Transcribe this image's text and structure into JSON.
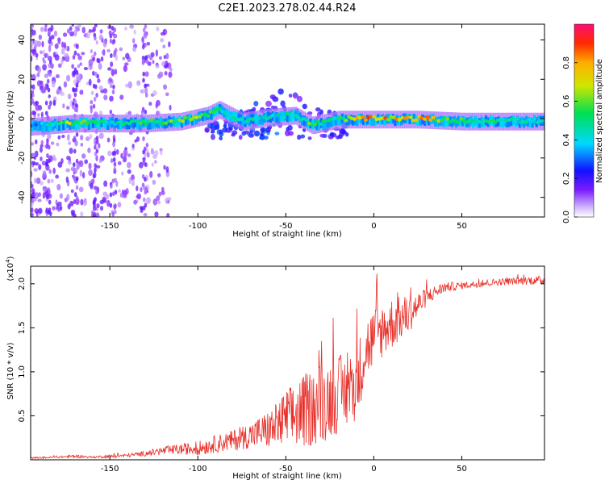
{
  "title": "C2E1.2023.278.02.44.R24",
  "chart_data": [
    {
      "type": "heatmap",
      "xlabel": "Height of straight line (km)",
      "ylabel": "Frequency (Hz)",
      "xlim": [
        -195,
        97
      ],
      "ylim": [
        -50,
        48
      ],
      "xticks": [
        -150,
        -100,
        -50,
        0,
        50
      ],
      "yticks": [
        -40,
        -20,
        0,
        20,
        40
      ],
      "colorbar": {
        "label": "Normalized spectral amplitude",
        "range": [
          0.0,
          1.0
        ],
        "ticks": [
          0.0,
          0.2,
          0.4,
          0.6,
          0.8
        ],
        "colormap": "rainbow-violet-to-magenta"
      },
      "ridge": [
        {
          "x": -185,
          "f": -3,
          "amp": 0.45
        },
        {
          "x": -170,
          "f": -2,
          "amp": 0.7
        },
        {
          "x": -150,
          "f": -2,
          "amp": 0.45
        },
        {
          "x": -130,
          "f": -2,
          "amp": 0.55
        },
        {
          "x": -110,
          "f": -1,
          "amp": 0.6
        },
        {
          "x": -95,
          "f": 2,
          "amp": 0.65
        },
        {
          "x": -88,
          "f": 5,
          "amp": 0.5
        },
        {
          "x": -75,
          "f": -1,
          "amp": 0.45
        },
        {
          "x": -60,
          "f": 1,
          "amp": 0.45
        },
        {
          "x": -45,
          "f": 2,
          "amp": 0.5
        },
        {
          "x": -35,
          "f": -3,
          "amp": 0.6
        },
        {
          "x": -20,
          "f": 0,
          "amp": 0.5
        },
        {
          "x": -5,
          "f": 0,
          "amp": 0.95
        },
        {
          "x": 10,
          "f": 0,
          "amp": 0.8
        },
        {
          "x": 25,
          "f": 0,
          "amp": 0.85
        },
        {
          "x": 50,
          "f": -1,
          "amp": 0.55
        },
        {
          "x": 75,
          "f": -1,
          "amp": 0.5
        },
        {
          "x": 95,
          "f": -1,
          "amp": 0.45
        }
      ]
    },
    {
      "type": "line",
      "xlabel": "Height of straight line (km)",
      "ylabel": "SNR (10 * v/v)",
      "y_multiplier": "(x10",
      "y_multiplier_exp": "4",
      "y_multiplier_close": ")",
      "xlim": [
        -195,
        97
      ],
      "ylim": [
        0,
        2.2
      ],
      "xticks": [
        -150,
        -100,
        -50,
        0,
        50
      ],
      "yticks": [
        0.5,
        1.0,
        1.5,
        2.0
      ],
      "line_color": "#e8302a",
      "series": [
        {
          "x": [
            -195,
            -180,
            -170,
            -160,
            -150,
            -140,
            -130,
            -120,
            -110,
            -100,
            -90,
            -80,
            -70,
            -60,
            -55,
            -50,
            -45,
            -40,
            -35,
            -30,
            -25,
            -20,
            -15,
            -10,
            -8,
            -5,
            0,
            5,
            10,
            15,
            20,
            25,
            30,
            40,
            50,
            60,
            70,
            80,
            90,
            97
          ],
          "y": [
            0.02,
            0.03,
            0.04,
            0.03,
            0.04,
            0.05,
            0.07,
            0.1,
            0.12,
            0.13,
            0.18,
            0.22,
            0.28,
            0.34,
            0.38,
            0.45,
            0.5,
            0.55,
            0.6,
            0.65,
            0.7,
            0.75,
            0.78,
            0.85,
            1.0,
            1.25,
            1.38,
            1.48,
            1.55,
            1.6,
            1.66,
            1.75,
            1.85,
            1.96,
            1.98,
            2.0,
            2.02,
            2.03,
            2.04,
            2.04
          ],
          "noise": [
            0.01,
            0.01,
            0.02,
            0.01,
            0.02,
            0.02,
            0.03,
            0.05,
            0.06,
            0.08,
            0.1,
            0.12,
            0.15,
            0.22,
            0.28,
            0.35,
            0.38,
            0.42,
            0.45,
            0.48,
            0.45,
            0.45,
            0.42,
            0.4,
            0.42,
            0.38,
            0.36,
            0.32,
            0.3,
            0.26,
            0.22,
            0.16,
            0.1,
            0.06,
            0.04,
            0.04,
            0.04,
            0.04,
            0.05,
            0.05
          ]
        }
      ]
    }
  ]
}
